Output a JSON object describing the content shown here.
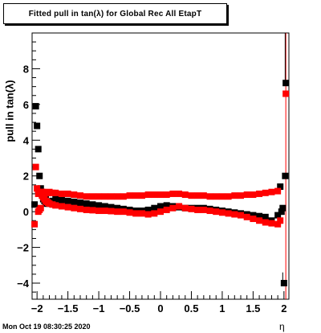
{
  "chart_data": {
    "type": "scatter",
    "title": "Fitted pull in tan(λ) for Global Rec All EtapT",
    "xlabel": "η",
    "ylabel": "pull in tan(λ)",
    "xlim": [
      -2.08,
      2.08
    ],
    "ylim": [
      -4.9,
      10.0
    ],
    "x_ticks": [
      -2,
      -1.5,
      -1,
      -0.5,
      0,
      0.5,
      1,
      1.5,
      2
    ],
    "x_tick_labels": [
      "−2",
      "−1.5",
      "−1",
      "−0.5",
      "0",
      "0.5",
      "1",
      "1.5",
      "2"
    ],
    "y_ticks": [
      -4,
      -2,
      0,
      2,
      4,
      6,
      8
    ],
    "y_tick_labels": [
      "−4",
      "−2",
      "0",
      "2",
      "4",
      "6",
      "8"
    ],
    "grid": false,
    "legend": "none",
    "series": [
      {
        "color": "#000000",
        "x": [
          -2.04,
          -2.02,
          -2.0,
          -1.98,
          -1.96,
          -1.94,
          -1.92,
          -1.9,
          -1.88,
          -1.86,
          -1.84,
          -1.82,
          -1.8,
          -1.75,
          -1.7,
          -1.6,
          -1.5,
          -1.4,
          -1.3,
          -1.2,
          -1.1,
          -1.0,
          -0.9,
          -0.8,
          -0.7,
          -0.6,
          -0.5,
          -0.4,
          -0.3,
          -0.2,
          -0.1,
          0.0,
          0.1,
          0.2,
          0.3,
          0.4,
          0.5,
          0.6,
          0.7,
          0.8,
          0.9,
          1.0,
          1.1,
          1.2,
          1.3,
          1.4,
          1.5,
          1.6,
          1.7,
          1.8,
          1.9,
          1.94,
          1.96,
          1.98,
          2.0,
          2.02
        ],
        "y": [
          0.4,
          5.9,
          4.8,
          3.5,
          2.0,
          1.3,
          1.0,
          0.7,
          0.6,
          0.5,
          0.45,
          0.45,
          0.5,
          0.6,
          0.7,
          0.65,
          0.6,
          0.55,
          0.5,
          0.45,
          0.4,
          0.35,
          0.3,
          0.25,
          0.2,
          0.15,
          0.1,
          0.05,
          0.05,
          0.1,
          0.2,
          0.3,
          0.35,
          0.3,
          0.25,
          0.2,
          0.2,
          0.2,
          0.2,
          0.15,
          0.1,
          0.05,
          0.0,
          -0.05,
          -0.1,
          -0.15,
          -0.2,
          -0.25,
          -0.3,
          -0.5,
          -0.2,
          1.4,
          0.0,
          0.2,
          -4.0,
          2.0
        ]
      },
      {
        "color": "#000000",
        "x": [
          -1.98,
          -1.96,
          -1.94,
          -1.92,
          -1.9,
          -1.88,
          -1.86,
          2.03
        ],
        "y": [
          1.2,
          1.2,
          1.1,
          1.1,
          1.05,
          1.0,
          0.95,
          7.2
        ]
      },
      {
        "color": "#ff0000",
        "x": [
          -2.04,
          -2.02,
          -2.0,
          -1.98,
          -1.96,
          -1.94,
          -1.92,
          -1.9,
          -1.88,
          -1.86,
          -1.84,
          -1.82,
          -1.8,
          -1.75,
          -1.7,
          -1.6,
          -1.5,
          -1.4,
          -1.3,
          -1.2,
          -1.1,
          -1.0,
          -0.9,
          -0.8,
          -0.7,
          -0.6,
          -0.5,
          -0.4,
          -0.3,
          -0.2,
          -0.1,
          0.0,
          0.1,
          0.2,
          0.3,
          0.4,
          0.5,
          0.6,
          0.7,
          0.8,
          0.9,
          1.0,
          1.1,
          1.2,
          1.3,
          1.4,
          1.5,
          1.6,
          1.7,
          1.8,
          1.9,
          1.94,
          2.03
        ],
        "y": [
          -0.7,
          2.5,
          1.3,
          0.0,
          0.1,
          0.2,
          0.9,
          0.8,
          0.7,
          0.6,
          0.55,
          0.5,
          0.45,
          0.4,
          0.35,
          0.3,
          0.25,
          0.2,
          0.15,
          0.1,
          0.08,
          0.05,
          0.05,
          0.03,
          0.0,
          0.0,
          -0.05,
          -0.1,
          -0.1,
          -0.15,
          -0.1,
          0.0,
          0.1,
          0.2,
          0.3,
          0.2,
          0.15,
          0.1,
          0.1,
          0.05,
          0.0,
          -0.05,
          -0.1,
          -0.15,
          -0.2,
          -0.3,
          -0.4,
          -0.5,
          -0.6,
          -0.65,
          -0.7,
          -0.5,
          6.6
        ]
      },
      {
        "color": "#ff0000",
        "x": [
          -1.98,
          -1.96,
          -1.94,
          -1.92,
          -1.9,
          -1.88,
          -1.86,
          -1.84,
          -1.82,
          -1.8,
          -1.75,
          -1.7,
          -1.6,
          -1.5,
          -1.4,
          -1.3,
          -1.2,
          -1.1,
          -1.0,
          -0.9,
          -0.8,
          -0.7,
          -0.6,
          -0.5,
          -0.4,
          -0.3,
          -0.2,
          -0.1,
          0.0,
          0.1,
          0.2,
          0.3,
          0.4,
          0.5,
          0.6,
          0.7,
          0.8,
          0.9,
          1.0,
          1.1,
          1.2,
          1.3,
          1.4,
          1.5,
          1.6,
          1.7,
          1.8,
          1.9
        ],
        "y": [
          1.0,
          1.05,
          1.1,
          1.1,
          1.1,
          1.05,
          1.05,
          1.05,
          1.05,
          1.1,
          1.05,
          1.05,
          1.0,
          1.0,
          0.95,
          0.9,
          0.85,
          0.85,
          0.85,
          0.85,
          0.85,
          0.85,
          0.85,
          0.9,
          0.9,
          0.9,
          0.95,
          0.95,
          0.95,
          0.95,
          1.0,
          1.0,
          0.95,
          0.9,
          0.9,
          0.9,
          0.85,
          0.85,
          0.85,
          0.85,
          0.9,
          0.9,
          0.95,
          0.95,
          1.0,
          1.05,
          1.1,
          1.15
        ]
      }
    ],
    "error_bars": [
      {
        "x": 1.98,
        "y_low": -4.0,
        "y_high": -3.4,
        "color": "#000000"
      },
      {
        "x": 2.03,
        "y_low": -4.9,
        "y_high": 10.0,
        "color": "#ff0000"
      },
      {
        "x": 2.02,
        "y_low": 7.2,
        "y_high": 10.0,
        "color": "#000000"
      }
    ]
  },
  "footer": {
    "timestamp": "Mon Oct 19 08:30:25 2020"
  }
}
